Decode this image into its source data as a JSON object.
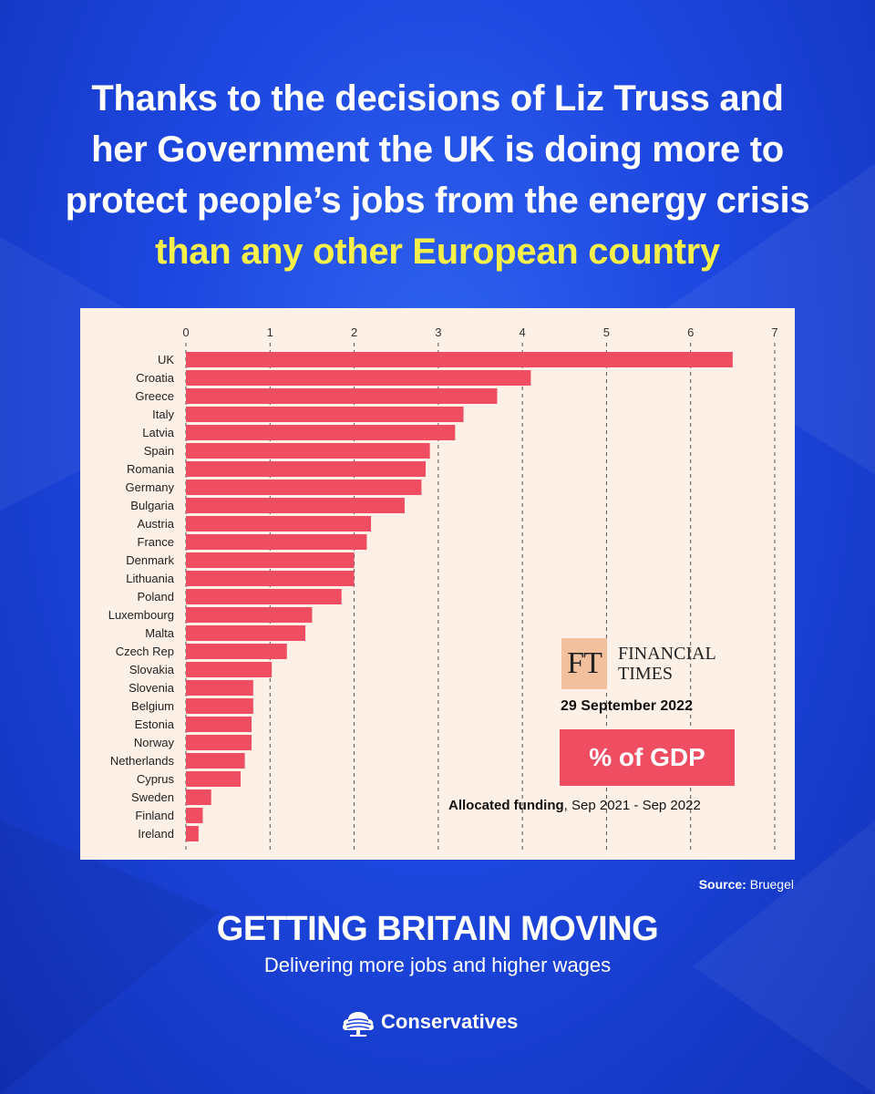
{
  "headline": {
    "line1": "Thanks to the decisions of Liz Truss and",
    "line2": "her Government the UK is doing more to",
    "line3": "protect people’s jobs from the energy crisis",
    "line4": "than any other European country"
  },
  "colors": {
    "background": "#1d47e0",
    "highlight": "#f5f04a",
    "bar": "#ef4d62",
    "chart_bg": "#fdf0e6",
    "ft_logo_bg": "#f2c09c"
  },
  "chart_data": {
    "type": "bar",
    "orientation": "horizontal",
    "categories": [
      "UK",
      "Croatia",
      "Greece",
      "Italy",
      "Latvia",
      "Spain",
      "Romania",
      "Germany",
      "Bulgaria",
      "Austria",
      "France",
      "Denmark",
      "Lithuania",
      "Poland",
      "Luxembourg",
      "Malta",
      "Czech Rep",
      "Slovakia",
      "Slovenia",
      "Belgium",
      "Estonia",
      "Norway",
      "Netherlands",
      "Cyprus",
      "Sweden",
      "Finland",
      "Ireland"
    ],
    "values": [
      6.5,
      4.1,
      3.7,
      3.3,
      3.2,
      2.9,
      2.85,
      2.8,
      2.6,
      2.2,
      2.15,
      2.0,
      2.0,
      1.85,
      1.5,
      1.42,
      1.2,
      1.02,
      0.8,
      0.8,
      0.78,
      0.78,
      0.7,
      0.65,
      0.3,
      0.2,
      0.15
    ],
    "xlim": [
      0,
      7
    ],
    "xticks": [
      0,
      1,
      2,
      3,
      4,
      5,
      6,
      7
    ],
    "grid": "vertical dashed",
    "axis_position": "top"
  },
  "annotation": {
    "ft_logo": "FT",
    "ft_name_line1": "FINANCIAL",
    "ft_name_line2": "TIMES",
    "date": "29 September 2022",
    "badge": "% of GDP",
    "allocated_bold": "Allocated funding",
    "allocated_rest": ", Sep 2021 - Sep 2022"
  },
  "source": {
    "label": "Source:",
    "value": "Bruegel"
  },
  "footer": {
    "title": "GETTING BRITAIN MOVING",
    "subtitle": "Delivering more jobs and higher wages",
    "brand": "Conservatives",
    "brand_icon": "tree-icon"
  }
}
